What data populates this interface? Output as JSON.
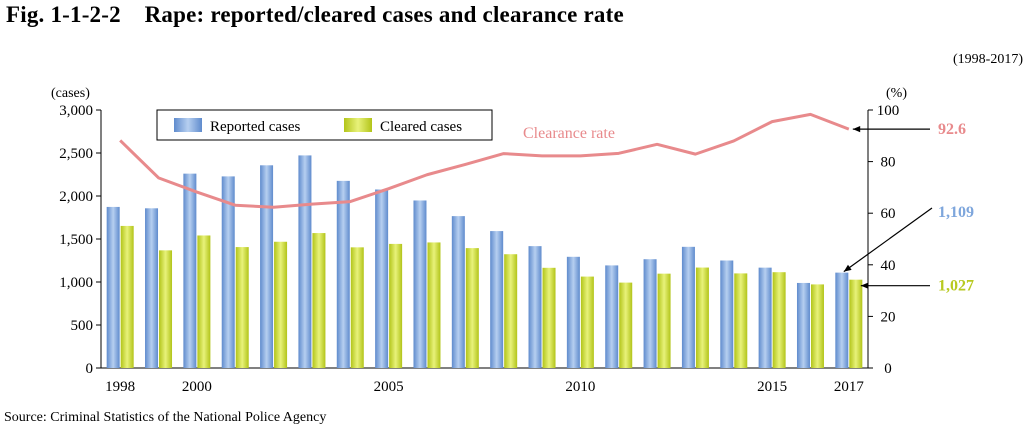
{
  "title": "Fig. 1-1-2-2    Rape: reported/cleared cases and clearance rate",
  "period": "(1998-2017)",
  "source": "Source: Criminal Statistics of the National Police Agency",
  "colors": {
    "reported": "#7ea6dc",
    "cleared": "#ccdc3a",
    "rate": "#e88a8c",
    "axis": "#000000"
  },
  "chart_data": {
    "type": "bar",
    "x": [
      1998,
      1999,
      2000,
      2001,
      2002,
      2003,
      2004,
      2005,
      2006,
      2007,
      2008,
      2009,
      2010,
      2011,
      2012,
      2013,
      2014,
      2015,
      2016,
      2017
    ],
    "x_tick_labels": [
      "1998",
      "2000",
      "2005",
      "2010",
      "2015",
      "2017"
    ],
    "series": [
      {
        "name": "Reported cases",
        "kind": "bar",
        "axis": "left",
        "values": [
          1873,
          1857,
          2260,
          2228,
          2357,
          2472,
          2176,
          2076,
          1948,
          1766,
          1592,
          1417,
          1293,
          1193,
          1265,
          1409,
          1250,
          1167,
          989,
          1109
        ]
      },
      {
        "name": "Cleared cases",
        "kind": "bar",
        "axis": "left",
        "values": [
          1652,
          1368,
          1541,
          1406,
          1468,
          1569,
          1403,
          1443,
          1460,
          1394,
          1323,
          1165,
          1063,
          993,
          1097,
          1168,
          1100,
          1114,
          972,
          1027
        ]
      },
      {
        "name": "Clearance rate",
        "kind": "line",
        "axis": "right",
        "values": [
          88.2,
          73.7,
          68.2,
          63.1,
          62.3,
          63.5,
          64.5,
          69.5,
          74.9,
          78.9,
          83.1,
          82.2,
          82.2,
          83.2,
          86.7,
          82.9,
          88.0,
          95.5,
          98.3,
          92.6
        ]
      }
    ],
    "ylabel_left": "(cases)",
    "ylabel_right": "(%)",
    "ylim_left": [
      0,
      3000
    ],
    "yticks_left": [
      "0",
      "500",
      "1,000",
      "1,500",
      "2,000",
      "2,500",
      "3,000"
    ],
    "ylim_right": [
      0,
      100
    ],
    "yticks_right": [
      "0",
      "20",
      "40",
      "60",
      "80",
      "100"
    ],
    "legend": {
      "placement": "top-left",
      "entries": [
        "Reported cases",
        "Cleared cases"
      ]
    },
    "line_label": "Clearance rate",
    "annotations": [
      "92.6",
      "1,109",
      "1,027"
    ],
    "grid": false
  }
}
